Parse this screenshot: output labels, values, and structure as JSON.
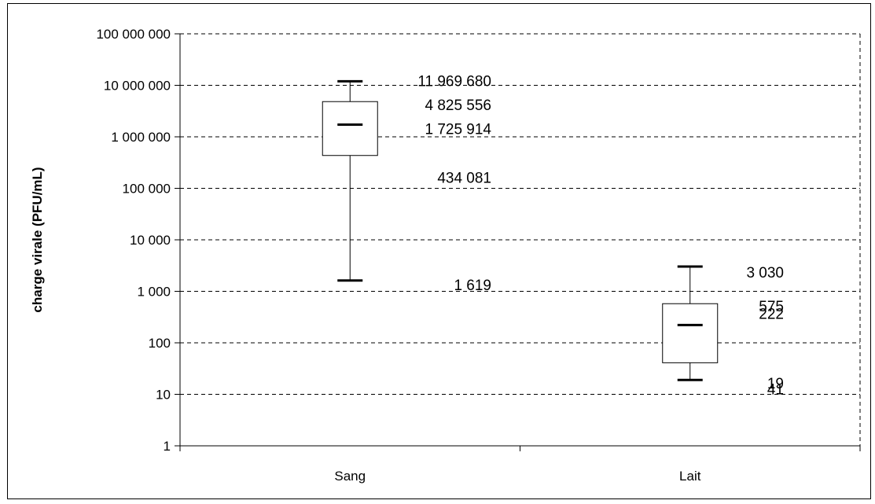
{
  "chart_data": {
    "type": "box",
    "ylabel": "charge virale (PFU/mL)",
    "xlabel": "",
    "title": "",
    "yscale": "log",
    "ylim": [
      1,
      100000000
    ],
    "y_ticks": [
      {
        "value": 1,
        "label": "1"
      },
      {
        "value": 10,
        "label": "10"
      },
      {
        "value": 100,
        "label": "100"
      },
      {
        "value": 1000,
        "label": "1 000"
      },
      {
        "value": 10000,
        "label": "10 000"
      },
      {
        "value": 100000,
        "label": "100 000"
      },
      {
        "value": 1000000,
        "label": "1 000 000"
      },
      {
        "value": 10000000,
        "label": "10 000 000"
      },
      {
        "value": 100000000,
        "label": "100 000 000"
      }
    ],
    "grid": true,
    "legend": "none",
    "categories": [
      "Sang",
      "Lait"
    ],
    "boxes": [
      {
        "category": "Sang",
        "min": 1619,
        "q1": 434081,
        "median": 1725914,
        "q3": 4825556,
        "max": 11969680,
        "labels": {
          "max": "11 969 680",
          "q3": "4 825 556",
          "median": "1 725 914",
          "q1": "434 081",
          "min": "1 619"
        }
      },
      {
        "category": "Lait",
        "min": 19,
        "q1": 41,
        "median": 222,
        "q3": 575,
        "max": 3030,
        "labels": {
          "max": "3 030",
          "q3": "575",
          "median": "222",
          "q1": "41",
          "min": "19"
        }
      }
    ]
  }
}
